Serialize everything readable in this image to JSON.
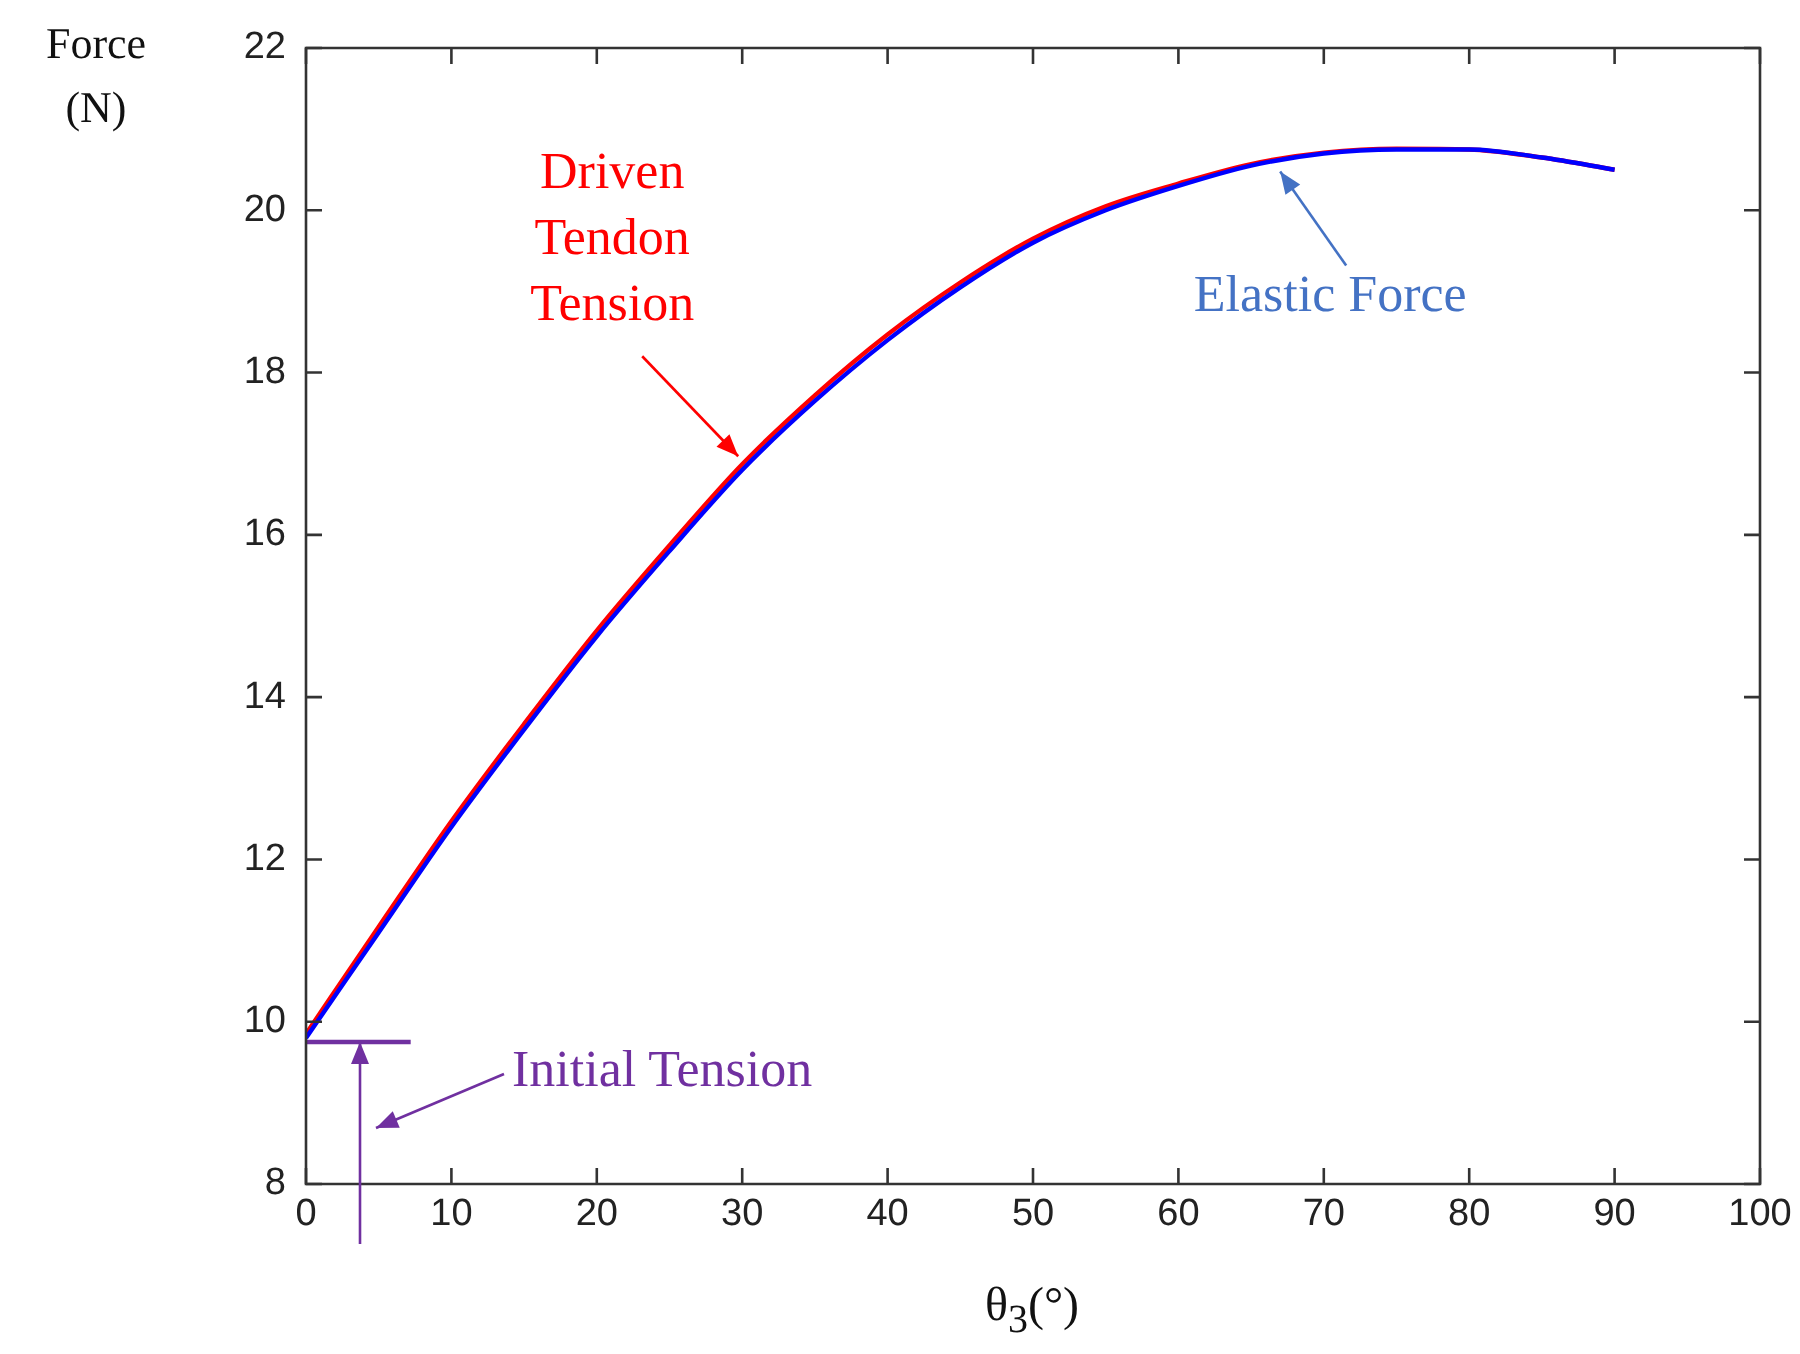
{
  "chart_data": {
    "type": "line",
    "xlabel": "θ$_{3}$(°)",
    "ylabel": "Force (N)",
    "x": [
      0,
      5,
      10,
      15,
      20,
      25,
      30,
      35,
      40,
      45,
      50,
      55,
      60,
      65,
      70,
      75,
      80,
      85,
      90
    ],
    "series": [
      {
        "color": "#ff0000",
        "values": [
          9.85,
          11.17,
          12.47,
          13.67,
          14.82,
          15.87,
          16.87,
          17.72,
          18.47,
          19.11,
          19.65,
          20.05,
          20.33,
          20.57,
          20.71,
          20.76,
          20.75,
          20.65,
          20.5
        ]
      },
      {
        "color": "#0000ff",
        "values": [
          9.8,
          11.1,
          12.4,
          13.6,
          14.75,
          15.8,
          16.8,
          17.65,
          18.4,
          19.05,
          19.6,
          20.0,
          20.3,
          20.55,
          20.7,
          20.75,
          20.75,
          20.65,
          20.5
        ]
      },
      {
        "color": "#7030a0",
        "x": [
          0,
          7.2
        ],
        "values": [
          9.75,
          9.75
        ]
      }
    ],
    "xlim": [
      0,
      100
    ],
    "xticks": [
      0,
      10,
      20,
      30,
      40,
      50,
      60,
      70,
      80,
      90,
      100
    ],
    "ylim": [
      8,
      22
    ],
    "yticks": [
      8,
      10,
      12,
      14,
      16,
      18,
      20,
      22
    ],
    "grid": false,
    "legend": false,
    "marker": "none",
    "line_style": "solid",
    "annotations": [
      {
        "text": "Driven Tendon Tension",
        "x": 30,
        "y": 16.87
      },
      {
        "text": "Elastic Force",
        "x": 67,
        "y": 20.6
      },
      "Initial Tension"
    ]
  }
}
